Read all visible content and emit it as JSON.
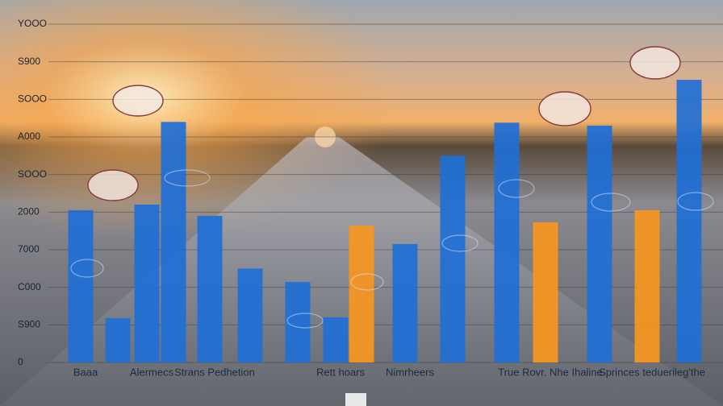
{
  "chart_data": {
    "type": "bar",
    "categories": [
      "Baaa",
      null,
      "Alermecs",
      null,
      "Strans Pedhetion",
      null,
      null,
      "Rett hoars",
      null,
      "Nimrheers",
      null,
      null,
      "True Rovr. Nhe Ihaline",
      null,
      "Sprinces teduerileg'the",
      null
    ],
    "values": [
      4050,
      1180,
      4200,
      6400,
      3900,
      2500,
      2140,
      1200,
      3640,
      3150,
      5500,
      6380,
      3730,
      6300,
      4050,
      7520
    ],
    "colors": [
      "#1f6fd6",
      "#1f6fd6",
      "#1f6fd6",
      "#1f6fd6",
      "#1f6fd6",
      "#1f6fd6",
      "#1f6fd6",
      "#1f6fd6",
      "#f7961f",
      "#1f6fd6",
      "#1f6fd6",
      "#1f6fd6",
      "#f7961f",
      "#1f6fd6",
      "#f7961f",
      "#1f6fd6"
    ],
    "ylim": [
      0,
      9000
    ],
    "yticks": [
      0,
      {
        "value": 1000,
        "label": "S900"
      },
      {
        "value": 2000,
        "label": "C000"
      },
      {
        "value": 3000,
        "label": "7000"
      },
      {
        "value": 4000,
        "label": "2000"
      },
      {
        "value": 5000,
        "label": "SOOO"
      },
      {
        "value": 6000,
        "label": "A000"
      },
      {
        "value": 7000,
        "label": "SOOO"
      },
      {
        "value": 8000,
        "label": "S900"
      },
      {
        "value": 9000,
        "label": "YOOO"
      }
    ],
    "grid": true
  }
}
